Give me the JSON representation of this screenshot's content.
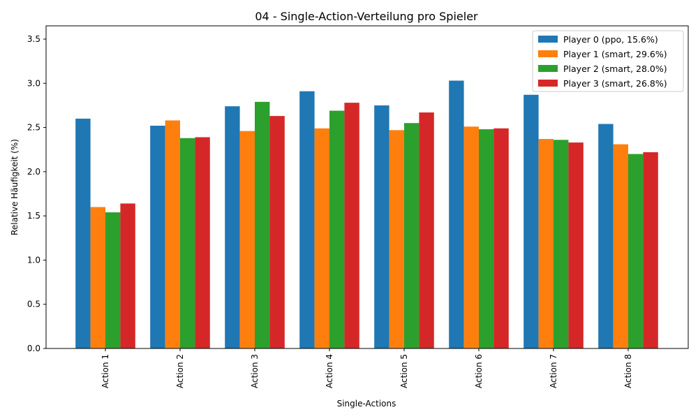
{
  "chart_data": {
    "type": "bar",
    "title": "04 - Single-Action-Verteilung pro Spieler",
    "xlabel": "Single-Actions",
    "ylabel": "Relative Häufigkeit (%)",
    "ylim": [
      0,
      3.65
    ],
    "yticks": [
      "0.0",
      "0.5",
      "1.0",
      "1.5",
      "2.0",
      "2.5",
      "3.0",
      "3.5"
    ],
    "categories": [
      "Action 1",
      "Action 2",
      "Action 3",
      "Action 4",
      "Action 5",
      "Action 6",
      "Action 7",
      "Action 8"
    ],
    "series": [
      {
        "name": "Player 0 (ppo, 15.6%)",
        "color": "#1f77b4",
        "values": [
          2.6,
          2.52,
          2.74,
          2.91,
          2.75,
          3.03,
          2.87,
          2.54
        ]
      },
      {
        "name": "Player 1 (smart, 29.6%)",
        "color": "#ff7f0e",
        "values": [
          1.6,
          2.58,
          2.46,
          2.49,
          2.47,
          2.51,
          2.37,
          2.31
        ]
      },
      {
        "name": "Player 2 (smart, 28.0%)",
        "color": "#2ca02c",
        "values": [
          1.54,
          2.38,
          2.79,
          2.69,
          2.55,
          2.48,
          2.36,
          2.2
        ]
      },
      {
        "name": "Player 3 (smart, 26.8%)",
        "color": "#d62728",
        "values": [
          1.64,
          2.39,
          2.63,
          2.78,
          2.67,
          2.49,
          2.33,
          2.22
        ]
      }
    ],
    "grid": false,
    "legend_position": "top-right"
  }
}
